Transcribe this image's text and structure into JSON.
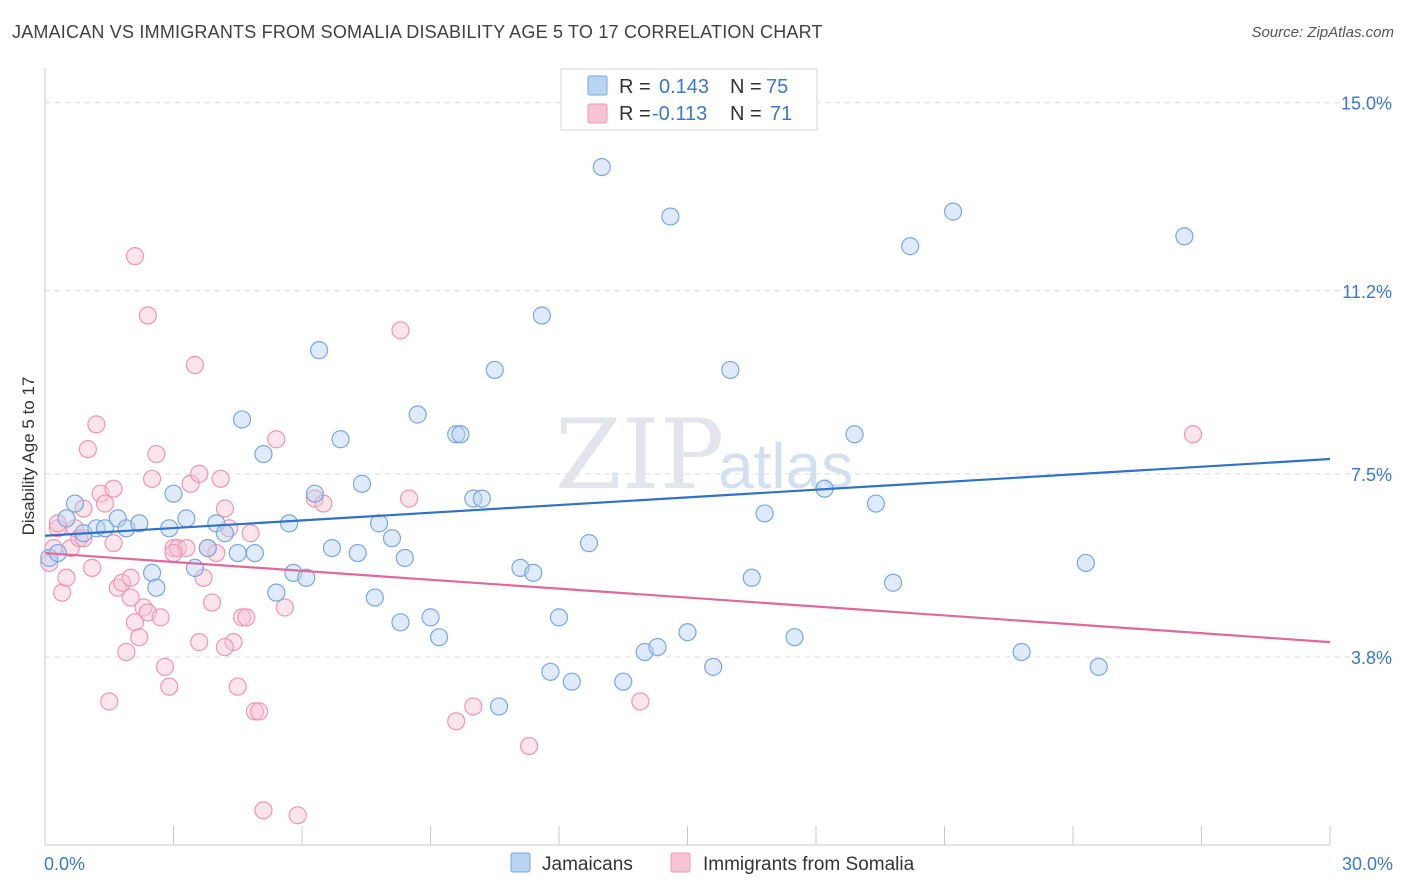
{
  "title": "JAMAICAN VS IMMIGRANTS FROM SOMALIA DISABILITY AGE 5 TO 17 CORRELATION CHART",
  "source": "Source: ZipAtlas.com",
  "watermark": {
    "zip": "ZIP",
    "atlas": "atlas"
  },
  "colors": {
    "blue_fill": "#b9d3f3",
    "blue_stroke": "#7aa7de",
    "blue_line": "#2f72c8",
    "pink_fill": "#f7c4d5",
    "pink_stroke": "#ec97b4",
    "pink_line": "#e0689a",
    "grid": "#d9d9d9",
    "axis_text": "#3a78c9"
  },
  "legend": {
    "rows": [
      {
        "r_label": "R =",
        "r_value": "0.143",
        "n_label": "N =",
        "n_value": "75"
      },
      {
        "r_label": "R =",
        "r_value": "-0.113",
        "n_label": "N =",
        "n_value": "71"
      }
    ]
  },
  "chart_data": {
    "type": "scatter",
    "title": "JAMAICAN VS IMMIGRANTS FROM SOMALIA DISABILITY AGE 5 TO 17 CORRELATION CHART",
    "xlabel": "",
    "ylabel": "Disability Age 5 to 17",
    "xlim": [
      0,
      30
    ],
    "ylim": [
      0,
      15.5
    ],
    "x_tick_labels": [
      "0.0%",
      "30.0%"
    ],
    "y_ticks": [
      3.8,
      7.5,
      11.2,
      15.0
    ],
    "y_tick_labels": [
      "3.8%",
      "7.5%",
      "11.2%",
      "15.0%"
    ],
    "grid": "horizontal-dashed",
    "legend_position": "top-center",
    "series": [
      {
        "name": "Jamaicans",
        "trend": {
          "x": [
            0,
            30
          ],
          "y": [
            6.25,
            7.8
          ]
        },
        "points": [
          [
            0.1,
            5.8
          ],
          [
            0.3,
            5.9
          ],
          [
            0.5,
            6.6
          ],
          [
            0.7,
            6.9
          ],
          [
            0.9,
            6.3
          ],
          [
            1.2,
            6.4
          ],
          [
            1.4,
            6.4
          ],
          [
            1.7,
            6.6
          ],
          [
            1.9,
            6.4
          ],
          [
            2.2,
            6.5
          ],
          [
            2.5,
            5.5
          ],
          [
            2.6,
            5.2
          ],
          [
            2.9,
            6.4
          ],
          [
            3.0,
            7.1
          ],
          [
            3.3,
            6.6
          ],
          [
            3.5,
            5.6
          ],
          [
            3.8,
            6.0
          ],
          [
            4.0,
            6.5
          ],
          [
            4.2,
            6.3
          ],
          [
            4.5,
            5.9
          ],
          [
            4.6,
            8.6
          ],
          [
            4.9,
            5.9
          ],
          [
            5.1,
            7.9
          ],
          [
            5.4,
            5.1
          ],
          [
            5.7,
            6.5
          ],
          [
            5.8,
            5.5
          ],
          [
            6.1,
            5.4
          ],
          [
            6.3,
            7.1
          ],
          [
            6.4,
            10.0
          ],
          [
            6.7,
            6.0
          ],
          [
            6.9,
            8.2
          ],
          [
            7.3,
            5.9
          ],
          [
            7.4,
            7.3
          ],
          [
            7.7,
            5.0
          ],
          [
            7.8,
            6.5
          ],
          [
            8.1,
            6.2
          ],
          [
            8.3,
            4.5
          ],
          [
            8.4,
            5.8
          ],
          [
            8.7,
            8.7
          ],
          [
            9.0,
            4.6
          ],
          [
            9.2,
            4.2
          ],
          [
            9.6,
            8.3
          ],
          [
            9.7,
            8.3
          ],
          [
            10.0,
            7.0
          ],
          [
            10.2,
            7.0
          ],
          [
            10.5,
            9.6
          ],
          [
            10.6,
            2.8
          ],
          [
            11.1,
            5.6
          ],
          [
            11.4,
            5.5
          ],
          [
            11.6,
            10.7
          ],
          [
            11.8,
            3.5
          ],
          [
            12.0,
            4.6
          ],
          [
            12.3,
            3.3
          ],
          [
            12.7,
            6.1
          ],
          [
            13.0,
            13.7
          ],
          [
            13.5,
            3.3
          ],
          [
            14.0,
            3.9
          ],
          [
            14.3,
            4.0
          ],
          [
            14.6,
            12.7
          ],
          [
            15.0,
            4.3
          ],
          [
            15.6,
            3.6
          ],
          [
            16.0,
            9.6
          ],
          [
            16.5,
            5.4
          ],
          [
            16.8,
            6.7
          ],
          [
            17.5,
            4.2
          ],
          [
            18.2,
            7.2
          ],
          [
            18.9,
            8.3
          ],
          [
            19.4,
            6.9
          ],
          [
            19.8,
            5.3
          ],
          [
            20.2,
            12.1
          ],
          [
            21.2,
            12.8
          ],
          [
            22.8,
            3.9
          ],
          [
            24.3,
            5.7
          ],
          [
            24.6,
            3.6
          ],
          [
            26.6,
            12.3
          ]
        ]
      },
      {
        "name": "Immigrants from Somalia",
        "trend": {
          "x": [
            0,
            30
          ],
          "y": [
            5.9,
            4.1
          ]
        },
        "points": [
          [
            0.1,
            5.7
          ],
          [
            0.2,
            6.0
          ],
          [
            0.3,
            6.4
          ],
          [
            0.4,
            5.1
          ],
          [
            0.5,
            5.4
          ],
          [
            0.6,
            6.0
          ],
          [
            0.7,
            6.4
          ],
          [
            0.8,
            6.2
          ],
          [
            0.9,
            6.8
          ],
          [
            1.0,
            8.0
          ],
          [
            1.1,
            5.6
          ],
          [
            1.2,
            8.5
          ],
          [
            1.3,
            7.1
          ],
          [
            1.4,
            6.9
          ],
          [
            1.5,
            2.9
          ],
          [
            1.6,
            6.1
          ],
          [
            1.7,
            5.2
          ],
          [
            1.8,
            5.3
          ],
          [
            1.9,
            3.9
          ],
          [
            2.0,
            5.4
          ],
          [
            2.1,
            4.5
          ],
          [
            2.2,
            4.2
          ],
          [
            2.3,
            4.8
          ],
          [
            2.4,
            4.7
          ],
          [
            2.5,
            7.4
          ],
          [
            2.6,
            7.9
          ],
          [
            2.7,
            4.6
          ],
          [
            2.8,
            3.6
          ],
          [
            2.9,
            3.2
          ],
          [
            3.0,
            6.0
          ],
          [
            3.1,
            6.0
          ],
          [
            3.3,
            6.0
          ],
          [
            3.4,
            7.3
          ],
          [
            3.5,
            9.7
          ],
          [
            3.6,
            4.1
          ],
          [
            3.7,
            5.4
          ],
          [
            3.8,
            6.0
          ],
          [
            3.9,
            4.9
          ],
          [
            4.0,
            5.9
          ],
          [
            4.1,
            7.4
          ],
          [
            4.2,
            6.8
          ],
          [
            4.3,
            6.4
          ],
          [
            4.4,
            4.1
          ],
          [
            4.5,
            3.2
          ],
          [
            4.6,
            4.6
          ],
          [
            4.7,
            4.6
          ],
          [
            4.8,
            6.3
          ],
          [
            4.9,
            2.7
          ],
          [
            5.0,
            2.7
          ],
          [
            5.1,
            0.7
          ],
          [
            5.4,
            8.2
          ],
          [
            5.6,
            4.8
          ],
          [
            5.9,
            0.6
          ],
          [
            6.3,
            7.0
          ],
          [
            6.5,
            6.9
          ],
          [
            8.3,
            10.4
          ],
          [
            8.5,
            7.0
          ],
          [
            9.6,
            2.5
          ],
          [
            10.0,
            2.8
          ],
          [
            11.3,
            2.0
          ],
          [
            13.9,
            2.9
          ],
          [
            26.8,
            8.3
          ],
          [
            2.1,
            11.9
          ],
          [
            2.4,
            10.7
          ],
          [
            3.0,
            5.9
          ],
          [
            1.6,
            7.2
          ],
          [
            0.9,
            6.2
          ],
          [
            0.3,
            6.5
          ],
          [
            2.0,
            5.0
          ],
          [
            3.6,
            7.5
          ],
          [
            4.2,
            4.0
          ]
        ]
      }
    ]
  }
}
